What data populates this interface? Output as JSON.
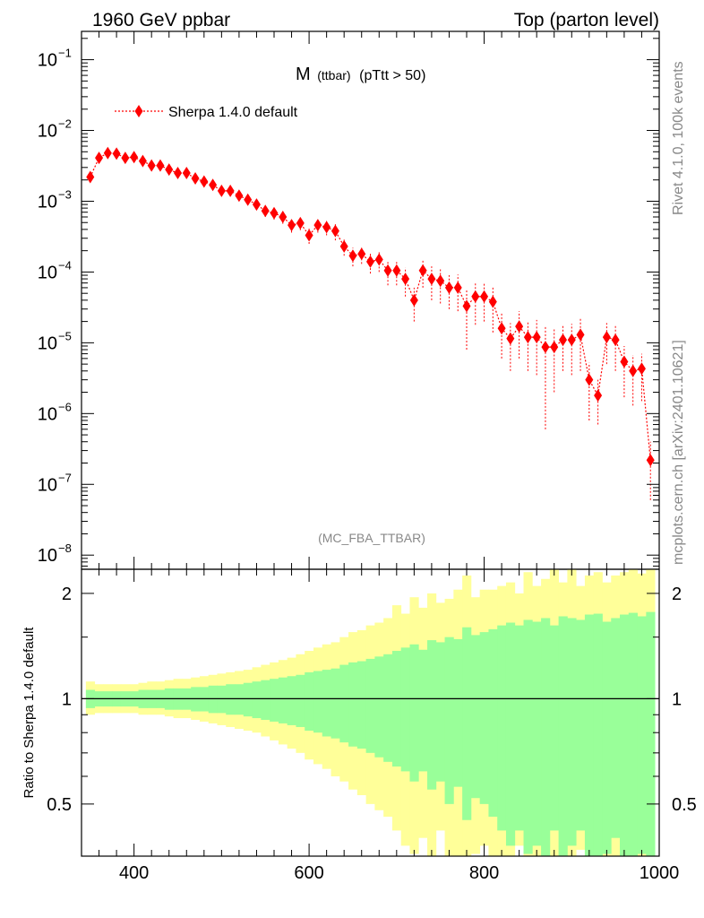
{
  "header": {
    "left": "1960 GeV ppbar",
    "right": "Top (parton level)"
  },
  "side_labels": {
    "rivet": "Rivet 4.1.0,  100k events",
    "mcplots": "mcplots.cern.ch [arXiv:2401.10621]"
  },
  "colors": {
    "series": "#ff0000",
    "band_inner": "#99ff99",
    "band_outer": "#ffff99",
    "gray_text": "#888888"
  },
  "chart_data": [
    {
      "type": "scatter",
      "title": "M",
      "title_sub": "(ttbar)",
      "title_cut": "(pTtt > 50)",
      "watermark": "(MC_FBA_TTBAR)",
      "xlim": [
        340,
        1000
      ],
      "ylim_log10": [
        -8.2,
        -0.6
      ],
      "yscale": "log",
      "y_ticks": [
        {
          "base": "10",
          "exp": "−1",
          "value": 0.1
        },
        {
          "base": "10",
          "exp": "−2",
          "value": 0.01
        },
        {
          "base": "10",
          "exp": "−3",
          "value": 0.001
        },
        {
          "base": "10",
          "exp": "−4",
          "value": 0.0001
        },
        {
          "base": "10",
          "exp": "−5",
          "value": 1e-05
        },
        {
          "base": "10",
          "exp": "−6",
          "value": 1e-06
        },
        {
          "base": "10",
          "exp": "−7",
          "value": 1e-07
        },
        {
          "base": "10",
          "exp": "−8",
          "value": 1e-08
        }
      ],
      "legend": {
        "label": "Sherpa 1.4.0 default",
        "placement": "top-left"
      },
      "series": [
        {
          "name": "Sherpa 1.4.0 default",
          "x": [
            350,
            360,
            370,
            380,
            390,
            400,
            410,
            420,
            430,
            440,
            450,
            460,
            470,
            480,
            490,
            500,
            510,
            520,
            530,
            540,
            550,
            560,
            570,
            580,
            590,
            600,
            610,
            620,
            630,
            640,
            650,
            660,
            670,
            680,
            690,
            700,
            710,
            720,
            730,
            740,
            750,
            760,
            770,
            780,
            790,
            800,
            810,
            820,
            830,
            840,
            850,
            860,
            870,
            880,
            890,
            900,
            910,
            920,
            930,
            940,
            950,
            960,
            970,
            980,
            990
          ],
          "y": [
            0.0022,
            0.0041,
            0.0048,
            0.0047,
            0.0041,
            0.0042,
            0.0037,
            0.0032,
            0.0032,
            0.0028,
            0.0025,
            0.0025,
            0.0021,
            0.0019,
            0.0017,
            0.0014,
            0.0014,
            0.0012,
            0.00105,
            0.0009,
            0.00073,
            0.00068,
            0.0006,
            0.00046,
            0.00049,
            0.00033,
            0.00046,
            0.00043,
            0.00038,
            0.00023,
            0.00017,
            0.00018,
            0.00014,
            0.00015,
            0.000105,
            0.000105,
            8e-05,
            4e-05,
            0.000105,
            8e-05,
            7.5e-05,
            6e-05,
            6e-05,
            3.3e-05,
            4.5e-05,
            4.5e-05,
            3.8e-05,
            1.6e-05,
            1.15e-05,
            1.7e-05,
            1.2e-05,
            1.2e-05,
            8.7e-06,
            8.7e-06,
            1.1e-05,
            1.1e-05,
            1.3e-05,
            3e-06,
            1.8e-06,
            1.2e-05,
            1.1e-05,
            5.4e-06,
            4e-06,
            4.3e-06,
            2.2e-07
          ],
          "y_lo": [
            0.002,
            0.0038,
            0.0045,
            0.0044,
            0.0038,
            0.0039,
            0.0034,
            0.0029,
            0.0029,
            0.0025,
            0.0022,
            0.0022,
            0.0018,
            0.0016,
            0.00145,
            0.0012,
            0.0012,
            0.001,
            0.00088,
            0.00075,
            0.0006,
            0.00055,
            0.00048,
            0.00036,
            0.00039,
            0.00025,
            0.00036,
            0.00033,
            0.00028,
            0.00017,
            0.00012,
            0.00013,
            9.5e-05,
            0.0001,
            6.5e-05,
            6.5e-05,
            4.5e-05,
            2e-05,
            6e-05,
            4e-05,
            3.6e-05,
            3e-05,
            2.8e-05,
            8e-06,
            1.8e-05,
            2e-05,
            1.4e-05,
            6e-06,
            4e-06,
            6e-06,
            4e-06,
            3.5e-06,
            6e-07,
            2e-06,
            4e-06,
            3.5e-06,
            4e-06,
            8e-07,
            7e-07,
            5e-06,
            4e-06,
            1.7e-06,
            1.3e-06,
            1.5e-06,
            6e-08
          ],
          "y_hi": [
            0.0024,
            0.0044,
            0.0051,
            0.005,
            0.0044,
            0.0045,
            0.004,
            0.0035,
            0.0035,
            0.0031,
            0.0028,
            0.0028,
            0.0024,
            0.0022,
            0.00195,
            0.0016,
            0.0016,
            0.0014,
            0.00122,
            0.00105,
            0.00086,
            0.00081,
            0.00072,
            0.00056,
            0.00059,
            0.00041,
            0.00056,
            0.00053,
            0.00048,
            0.00029,
            0.00022,
            0.00023,
            0.000185,
            0.0002,
            0.000145,
            0.000145,
            0.000115,
            6e-05,
            0.00015,
            0.00012,
            0.000115,
            9e-05,
            9.2e-05,
            5.8e-05,
            7.2e-05,
            7e-05,
            6.2e-05,
            2.6e-05,
            1.9e-05,
            2.8e-05,
            2e-05,
            2.1e-05,
            1.7e-05,
            1.55e-05,
            1.8e-05,
            1.85e-05,
            2.2e-05,
            5.2e-06,
            3e-06,
            1.9e-05,
            1.8e-05,
            9e-06,
            6.7e-06,
            7e-06,
            4e-07
          ]
        }
      ]
    },
    {
      "type": "area",
      "ylabel": "Ratio to Sherpa 1.4.0 default",
      "xlim": [
        340,
        1000
      ],
      "ylim_log10": [
        -0.45,
        0.37
      ],
      "yscale": "log",
      "x_ticks": [
        400,
        600,
        800,
        1000
      ],
      "y_ticks": [
        {
          "label": "2",
          "value": 2
        },
        {
          "label": "1",
          "value": 1
        },
        {
          "label": "0.5",
          "value": 0.5
        }
      ],
      "reference_line": 1,
      "bins": {
        "x": [
          350,
          360,
          370,
          380,
          390,
          400,
          410,
          420,
          430,
          440,
          450,
          460,
          470,
          480,
          490,
          500,
          510,
          520,
          530,
          540,
          550,
          560,
          570,
          580,
          590,
          600,
          610,
          620,
          630,
          640,
          650,
          660,
          670,
          680,
          690,
          700,
          710,
          720,
          730,
          740,
          750,
          760,
          770,
          780,
          790,
          800,
          810,
          820,
          830,
          840,
          850,
          860,
          870,
          880,
          890,
          900,
          910,
          920,
          930,
          940,
          950,
          960,
          970,
          980,
          990
        ],
        "inner_up": [
          1.06,
          1.05,
          1.05,
          1.05,
          1.05,
          1.05,
          1.06,
          1.06,
          1.06,
          1.07,
          1.07,
          1.07,
          1.08,
          1.08,
          1.09,
          1.09,
          1.1,
          1.1,
          1.11,
          1.12,
          1.13,
          1.14,
          1.15,
          1.16,
          1.17,
          1.19,
          1.2,
          1.21,
          1.22,
          1.25,
          1.27,
          1.28,
          1.3,
          1.32,
          1.34,
          1.37,
          1.4,
          1.43,
          1.38,
          1.47,
          1.45,
          1.5,
          1.48,
          1.6,
          1.52,
          1.55,
          1.58,
          1.62,
          1.65,
          1.62,
          1.68,
          1.66,
          1.7,
          1.62,
          1.72,
          1.7,
          1.68,
          1.74,
          1.75,
          1.66,
          1.7,
          1.74,
          1.76,
          1.72,
          1.77
        ],
        "inner_lo": [
          0.94,
          0.95,
          0.95,
          0.95,
          0.95,
          0.95,
          0.94,
          0.94,
          0.94,
          0.93,
          0.93,
          0.93,
          0.92,
          0.92,
          0.91,
          0.91,
          0.9,
          0.9,
          0.89,
          0.88,
          0.87,
          0.86,
          0.85,
          0.84,
          0.83,
          0.81,
          0.8,
          0.78,
          0.77,
          0.75,
          0.73,
          0.72,
          0.7,
          0.68,
          0.66,
          0.64,
          0.62,
          0.58,
          0.62,
          0.55,
          0.58,
          0.5,
          0.56,
          0.45,
          0.52,
          0.5,
          0.46,
          0.42,
          0.38,
          0.42,
          0.36,
          0.38,
          0.32,
          0.42,
          0.34,
          0.38,
          0.42,
          0.3,
          0.28,
          0.36,
          0.4,
          0.33,
          0.3,
          0.36,
          0.3
        ],
        "outer_up": [
          1.12,
          1.1,
          1.1,
          1.1,
          1.1,
          1.1,
          1.11,
          1.12,
          1.12,
          1.13,
          1.14,
          1.14,
          1.15,
          1.16,
          1.17,
          1.18,
          1.19,
          1.2,
          1.21,
          1.23,
          1.25,
          1.27,
          1.29,
          1.31,
          1.34,
          1.37,
          1.4,
          1.43,
          1.45,
          1.5,
          1.55,
          1.57,
          1.62,
          1.65,
          1.7,
          1.85,
          1.75,
          1.95,
          1.82,
          2.0,
          1.88,
          1.93,
          2.05,
          2.25,
          1.95,
          2.05,
          2.05,
          2.1,
          2.15,
          2.0,
          2.3,
          2.1,
          2.2,
          2.35,
          2.15,
          2.4,
          2.1,
          2.25,
          2.3,
          2.15,
          2.25,
          2.3,
          2.35,
          2.28,
          2.37
        ],
        "outer_lo": [
          0.9,
          0.91,
          0.91,
          0.91,
          0.91,
          0.91,
          0.9,
          0.9,
          0.9,
          0.89,
          0.88,
          0.88,
          0.87,
          0.86,
          0.85,
          0.84,
          0.83,
          0.82,
          0.81,
          0.8,
          0.78,
          0.76,
          0.74,
          0.72,
          0.7,
          0.67,
          0.65,
          0.63,
          0.6,
          0.58,
          0.55,
          0.53,
          0.5,
          0.48,
          0.46,
          0.42,
          0.38,
          0.36,
          0.4,
          0.33,
          0.42,
          0.3,
          0.35,
          0.3,
          0.36,
          0.38,
          0.3,
          0.35,
          0.3,
          0.38,
          0.32,
          0.28,
          0.3,
          0.35,
          0.28,
          0.33,
          0.37,
          0.3,
          0.28,
          0.33,
          0.3,
          0.28,
          0.3,
          0.33,
          0.3
        ]
      }
    }
  ]
}
